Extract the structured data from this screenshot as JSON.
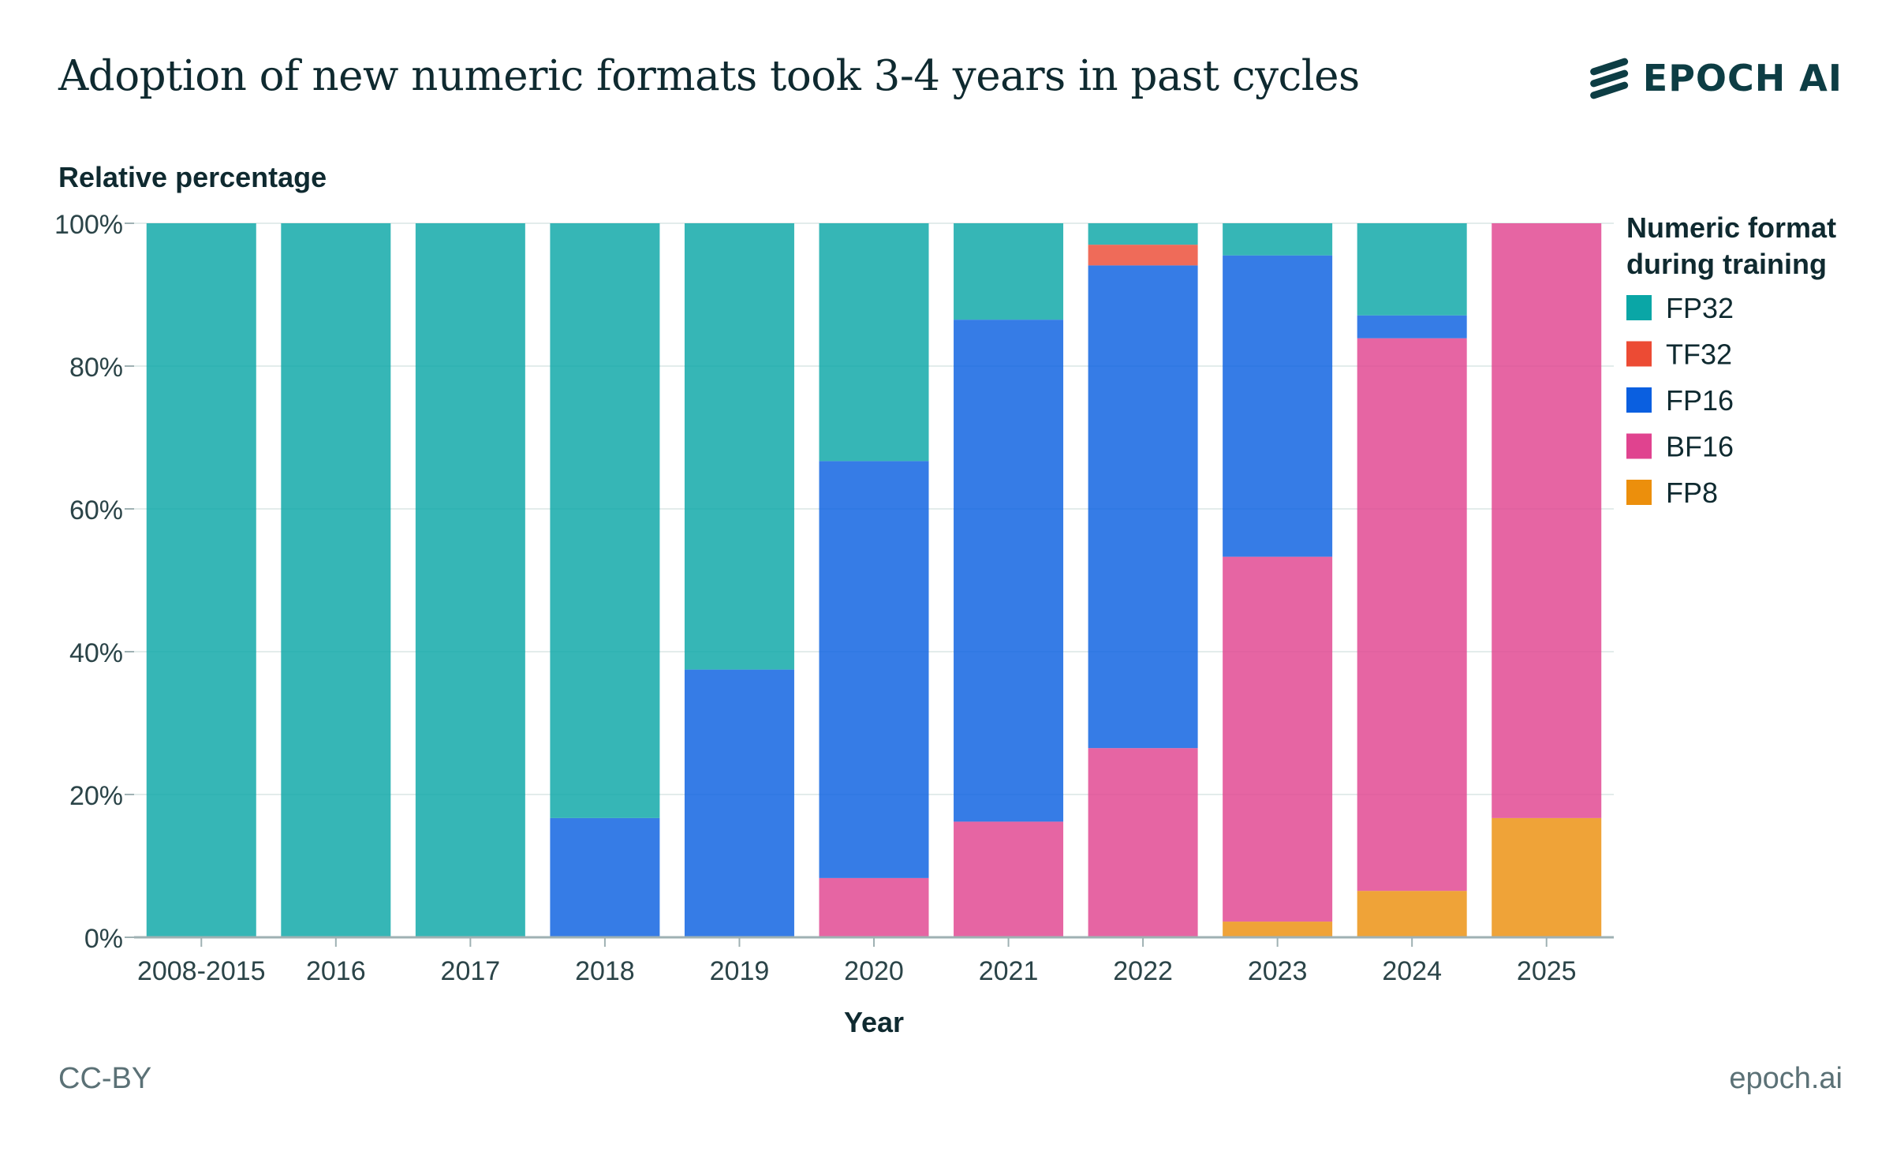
{
  "header": {
    "title": "Adoption of new numeric formats took 3-4 years in past cycles",
    "brand": "EPOCH AI"
  },
  "footer": {
    "license": "CC-BY",
    "site": "epoch.ai"
  },
  "chart_data": {
    "type": "bar",
    "stacked": true,
    "title": "Adoption of new numeric formats took 3-4 years in past cycles",
    "xlabel": "Year",
    "ylabel": "Relative percentage",
    "ylim": [
      0,
      100
    ],
    "y_ticks": [
      "0%",
      "20%",
      "40%",
      "60%",
      "80%",
      "100%"
    ],
    "grid": true,
    "legend_title": "Numeric format during training",
    "legend_title_lines": [
      "Numeric format",
      "during training"
    ],
    "legend_position": "right",
    "categories": [
      "2008-2015",
      "2016",
      "2017",
      "2018",
      "2019",
      "2020",
      "2021",
      "2022",
      "2023",
      "2024",
      "2025"
    ],
    "series": [
      {
        "name": "FP8",
        "color": "#ec8f0c",
        "values": [
          0,
          0,
          0,
          0,
          0,
          0,
          0,
          0,
          2.2,
          6.5,
          16.7
        ]
      },
      {
        "name": "BF16",
        "color": "#e0438f",
        "values": [
          0,
          0,
          0,
          0,
          0,
          8.3,
          16.2,
          26.5,
          51.1,
          77.4,
          83.3
        ]
      },
      {
        "name": "FP16",
        "color": "#0a5fe0",
        "values": [
          0,
          0,
          0,
          16.7,
          37.5,
          58.4,
          70.3,
          67.6,
          42.2,
          3.2,
          0
        ]
      },
      {
        "name": "TF32",
        "color": "#ec4b34",
        "values": [
          0,
          0,
          0,
          0,
          0,
          0,
          0,
          2.9,
          0,
          0,
          0
        ]
      },
      {
        "name": "FP32",
        "color": "#0aa6a6",
        "values": [
          100,
          100,
          100,
          83.3,
          62.5,
          33.3,
          13.5,
          3.0,
          4.5,
          12.9,
          0
        ]
      }
    ],
    "legend_order": [
      "FP32",
      "TF32",
      "FP16",
      "BF16",
      "FP8"
    ]
  }
}
